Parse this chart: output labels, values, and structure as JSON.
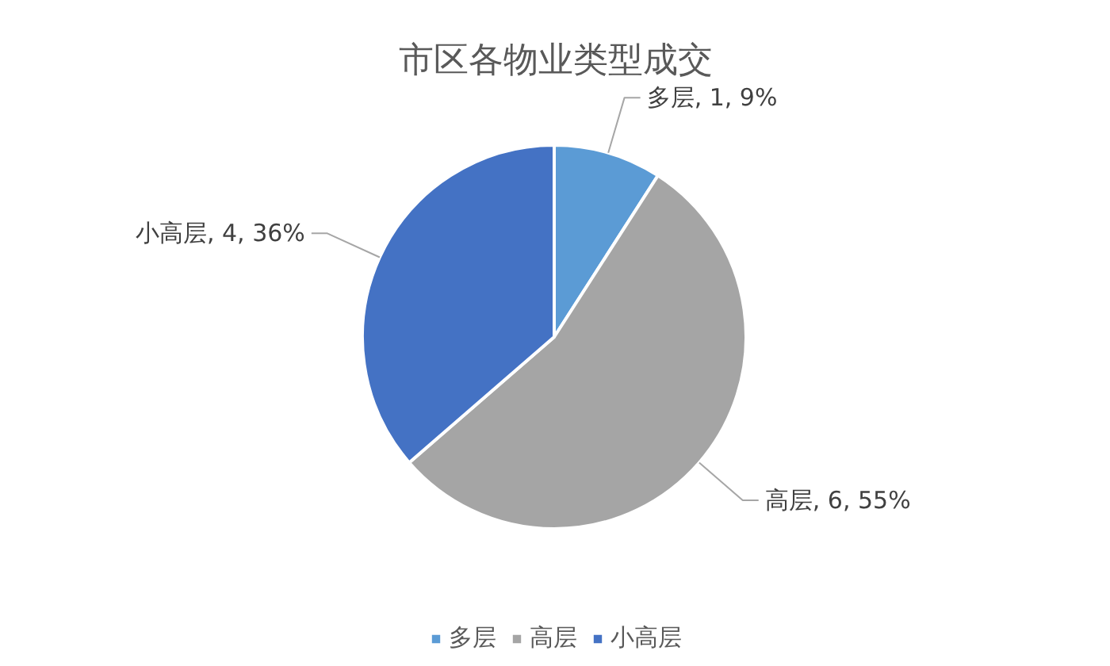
{
  "chart_data": {
    "type": "pie",
    "title": "市区各物业类型成交",
    "categories": [
      "多层",
      "高层",
      "小高层"
    ],
    "values": [
      1,
      6,
      4
    ],
    "colors": [
      "#5b9bd5",
      "#a5a5a5",
      "#4472c4"
    ],
    "value_labels": [
      "多层, 1, 9%",
      "高层, 6, 55%",
      "小高层, 4, 36%"
    ],
    "legend": "bottom"
  }
}
